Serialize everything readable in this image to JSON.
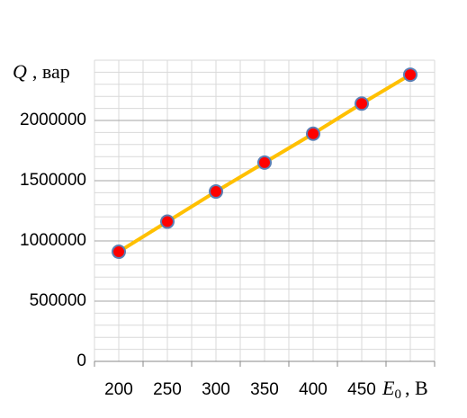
{
  "chart_data": {
    "type": "line",
    "y_label": {
      "symbol": "Q",
      "unit": ", вар"
    },
    "x_label": {
      "symbol": "E",
      "subscript": "0",
      "unit": ", В"
    },
    "categories": [
      200,
      250,
      300,
      350,
      400,
      450,
      null
    ],
    "series": [
      {
        "color": "#FFC000",
        "marker_color": "#FF0000",
        "marker_edge": "#5B7FB5",
        "values": [
          910000,
          1160000,
          1410000,
          1650000,
          1890000,
          2140000,
          2380000
        ]
      }
    ],
    "ylim": [
      0,
      2500000
    ],
    "yticks": [
      0,
      500000,
      1000000,
      1500000,
      2000000
    ],
    "grid": true,
    "minor_grid": true
  }
}
